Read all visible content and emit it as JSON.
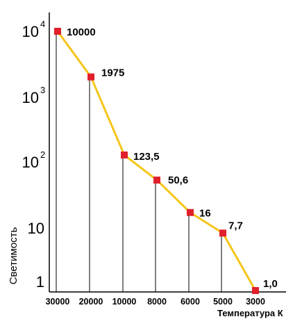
{
  "chart_data": {
    "type": "line",
    "title": "",
    "xlabel": "Температура К",
    "ylabel": "Светимость",
    "y_scale": "log",
    "ylim": [
      1,
      10000
    ],
    "grid": false,
    "line_color": "#f5c518",
    "marker_color": "#e0202a",
    "axis_color": "#000000",
    "x_tick_labels": [
      "30000",
      "20000",
      "10000",
      "8000",
      "6000",
      "5000",
      "3000"
    ],
    "y_ticks": [
      {
        "value": 10000,
        "base": "10",
        "exp": "4"
      },
      {
        "value": 1000,
        "base": "10",
        "exp": "3"
      },
      {
        "value": 100,
        "base": "10",
        "exp": "2"
      },
      {
        "value": 10,
        "base": "10",
        "exp": ""
      },
      {
        "value": 1,
        "base": "1",
        "exp": ""
      }
    ],
    "points": [
      {
        "x": "30000",
        "y": 10000,
        "label": "10000"
      },
      {
        "x": "20000",
        "y": 1975,
        "label": "1975"
      },
      {
        "x": "10000",
        "y": 123.5,
        "label": "123,5"
      },
      {
        "x": "8000",
        "y": 50.6,
        "label": "50,6"
      },
      {
        "x": "6000",
        "y": 16,
        "label": "16"
      },
      {
        "x": "5000",
        "y": 7.7,
        "label": "7,7"
      },
      {
        "x": "3000",
        "y": 1.0,
        "label": "1,0"
      }
    ]
  }
}
